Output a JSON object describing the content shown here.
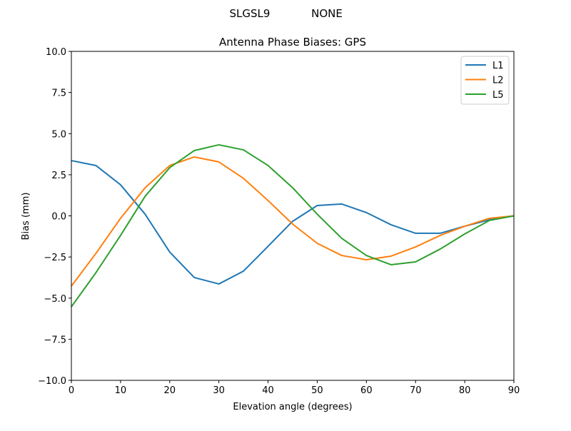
{
  "suptitle_left": "SLGSL9",
  "suptitle_right": "NONE",
  "chart_data": {
    "type": "line",
    "title": "Antenna Phase Biases: GPS",
    "xlabel": "Elevation angle (degrees)",
    "ylabel": "Bias (mm)",
    "xlim": [
      0,
      90
    ],
    "ylim": [
      -10,
      10
    ],
    "xticks": [
      0,
      10,
      20,
      30,
      40,
      50,
      60,
      70,
      80,
      90
    ],
    "xtick_labels": [
      "0",
      "10",
      "20",
      "30",
      "40",
      "50",
      "60",
      "70",
      "80",
      "90"
    ],
    "yticks": [
      -10,
      -7.5,
      -5,
      -2.5,
      0,
      2.5,
      5,
      7.5,
      10
    ],
    "ytick_labels": [
      "−10.0",
      "−7.5",
      "−5.0",
      "−2.5",
      "0.0",
      "2.5",
      "5.0",
      "7.5",
      "10.0"
    ],
    "grid": false,
    "legend_position": "top-right",
    "x": [
      0,
      5,
      10,
      15,
      20,
      25,
      30,
      35,
      40,
      45,
      50,
      55,
      60,
      65,
      70,
      75,
      80,
      85,
      90
    ],
    "series": [
      {
        "name": "L1",
        "color": "#1f77b4",
        "values": [
          3.36,
          3.06,
          1.89,
          0.1,
          -2.2,
          -3.75,
          -4.14,
          -3.36,
          -1.85,
          -0.33,
          0.63,
          0.72,
          0.2,
          -0.54,
          -1.06,
          -1.06,
          -0.63,
          -0.24,
          0.0
        ]
      },
      {
        "name": "L2",
        "color": "#ff7f0e",
        "values": [
          -4.27,
          -2.28,
          -0.15,
          1.71,
          3.06,
          3.58,
          3.28,
          2.28,
          0.93,
          -0.5,
          -1.67,
          -2.41,
          -2.67,
          -2.45,
          -1.89,
          -1.19,
          -0.63,
          -0.15,
          0.0
        ]
      },
      {
        "name": "L5",
        "color": "#2ca02c",
        "values": [
          -5.53,
          -3.45,
          -1.19,
          1.19,
          2.93,
          3.97,
          4.32,
          4.01,
          3.06,
          1.71,
          0.1,
          -1.37,
          -2.41,
          -2.97,
          -2.8,
          -2.02,
          -1.1,
          -0.28,
          0.0
        ]
      }
    ]
  }
}
